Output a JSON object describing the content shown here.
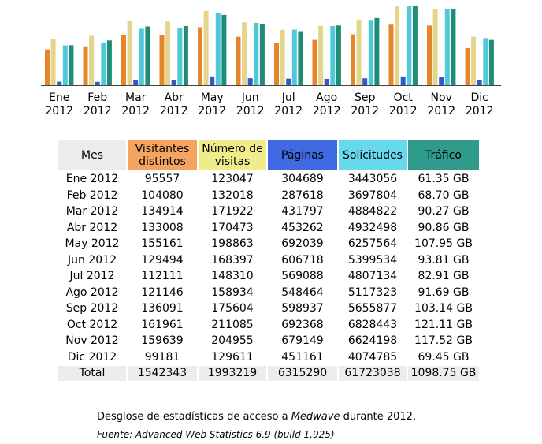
{
  "chart_data": {
    "type": "bar",
    "categories": [
      [
        "Ene",
        "2012"
      ],
      [
        "Feb",
        "2012"
      ],
      [
        "Mar",
        "2012"
      ],
      [
        "Abr",
        "2012"
      ],
      [
        "May",
        "2012"
      ],
      [
        "Jun",
        "2012"
      ],
      [
        "Jul",
        "2012"
      ],
      [
        "Ago",
        "2012"
      ],
      [
        "Sep",
        "2012"
      ],
      [
        "Oct",
        "2012"
      ],
      [
        "Nov",
        "2012"
      ],
      [
        "Dic",
        "2012"
      ]
    ],
    "series": [
      {
        "name": "Visitantes distintos",
        "color": "#e3862c",
        "values": [
          95557,
          104080,
          134914,
          133008,
          155161,
          129494,
          112111,
          121146,
          136091,
          161961,
          159639,
          99181
        ]
      },
      {
        "name": "Número de visitas",
        "color": "#e3d58b",
        "values": [
          123047,
          132018,
          171922,
          170473,
          198863,
          168397,
          148310,
          158934,
          175604,
          211085,
          204955,
          129611
        ]
      },
      {
        "name": "Páginas",
        "color": "#3159c9",
        "values": [
          304689,
          287618,
          431797,
          453262,
          692039,
          606718,
          569088,
          548464,
          598937,
          692368,
          679149,
          451161
        ]
      },
      {
        "name": "Solicitudes",
        "color": "#4fc9da",
        "values": [
          3443056,
          3697804,
          4884822,
          4932498,
          6257564,
          5399534,
          4807134,
          5117323,
          5655877,
          6828443,
          6624198,
          4074785
        ]
      },
      {
        "name": "Tráfico",
        "color": "#1f8c78",
        "values": [
          61.35,
          68.7,
          90.27,
          90.86,
          107.95,
          93.81,
          82.91,
          91.69,
          103.14,
          121.11,
          117.52,
          69.45
        ]
      }
    ]
  },
  "table": {
    "headers": [
      {
        "line1": "Mes",
        "line2": ""
      },
      {
        "line1": "Visitantes",
        "line2": "distintos"
      },
      {
        "line1": "Número de",
        "line2": "visitas"
      },
      {
        "line1": "Páginas",
        "line2": ""
      },
      {
        "line1": "Solicitudes",
        "line2": ""
      },
      {
        "line1": "Tráfico",
        "line2": ""
      }
    ],
    "rows": [
      [
        "Ene 2012",
        "95557",
        "123047",
        "304689",
        "3443056",
        "61.35 GB"
      ],
      [
        "Feb 2012",
        "104080",
        "132018",
        "287618",
        "3697804",
        "68.70 GB"
      ],
      [
        "Mar 2012",
        "134914",
        "171922",
        "431797",
        "4884822",
        "90.27 GB"
      ],
      [
        "Abr 2012",
        "133008",
        "170473",
        "453262",
        "4932498",
        "90.86 GB"
      ],
      [
        "May 2012",
        "155161",
        "198863",
        "692039",
        "6257564",
        "107.95 GB"
      ],
      [
        "Jun 2012",
        "129494",
        "168397",
        "606718",
        "5399534",
        "93.81 GB"
      ],
      [
        "Jul 2012",
        "112111",
        "148310",
        "569088",
        "4807134",
        "82.91 GB"
      ],
      [
        "Ago 2012",
        "121146",
        "158934",
        "548464",
        "5117323",
        "91.69 GB"
      ],
      [
        "Sep 2012",
        "136091",
        "175604",
        "598937",
        "5655877",
        "103.14 GB"
      ],
      [
        "Oct 2012",
        "161961",
        "211085",
        "692368",
        "6828443",
        "121.11 GB"
      ],
      [
        "Nov 2012",
        "159639",
        "204955",
        "679149",
        "6624198",
        "117.52 GB"
      ],
      [
        "Dic 2012",
        "99181",
        "129611",
        "451161",
        "4074785",
        "69.45 GB"
      ]
    ],
    "total": [
      "Total",
      "1542343",
      "1993219",
      "6315290",
      "61723038",
      "1098.75 GB"
    ]
  },
  "caption": {
    "prefix": "Desglose de estadísticas de acceso a ",
    "site": "Medwave",
    "suffix": " durante 2012."
  },
  "source": "Fuente: Advanced Web Statistics 6.9 (build 1.925)"
}
